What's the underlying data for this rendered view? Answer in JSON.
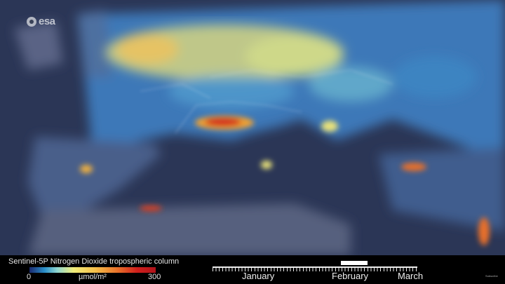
{
  "logo": {
    "text": "esa"
  },
  "legend": {
    "title": "Sentinel-5P Nitrogen Dioxide tropospheric column",
    "min": "0",
    "unit": "µmol/m²",
    "max": "300",
    "colors": [
      "#1a2a70",
      "#2a8fc8",
      "#f2ee7a",
      "#e8702a",
      "#b0121a"
    ]
  },
  "timeline": {
    "months": [
      "January",
      "February",
      "March"
    ]
  },
  "footer": {
    "subscribe": "Subscribe"
  }
}
